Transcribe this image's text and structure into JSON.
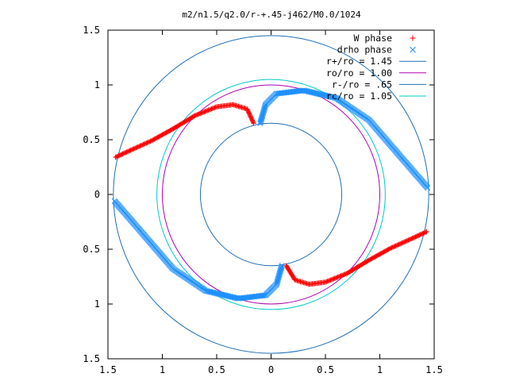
{
  "chart_data": {
    "type": "scatter",
    "title": "m2/n1.5/q2.0/r-+.45-j462/M0.0/1024",
    "xlim": [
      -1.5,
      1.5
    ],
    "ylim": [
      -1.5,
      1.5
    ],
    "x_tick_labels": [
      "1.5",
      "1",
      "0.5",
      "0",
      "0.5",
      "1",
      "1.5"
    ],
    "x_tick_values": [
      -1.5,
      -1,
      -0.5,
      0,
      0.5,
      1,
      1.5
    ],
    "y_tick_labels": [
      "1.5",
      "1",
      "0.5",
      "0",
      "0.5",
      "1",
      "1.5"
    ],
    "y_tick_values": [
      1.5,
      1,
      0.5,
      0,
      -0.5,
      -1,
      -1.5
    ],
    "grid": false,
    "legend_position": "top-right",
    "series": [
      {
        "name": "W phase",
        "marker": "plus",
        "color": "#ff0000",
        "segments": [
          [
            [
              -1.43,
              0.34
            ],
            [
              -1.3,
              0.4
            ],
            [
              -1.1,
              0.49
            ],
            [
              -0.9,
              0.6
            ],
            [
              -0.7,
              0.72
            ],
            [
              -0.5,
              0.8
            ],
            [
              -0.35,
              0.82
            ],
            [
              -0.22,
              0.78
            ],
            [
              -0.16,
              0.65
            ]
          ],
          [
            [
              0.14,
              -0.65
            ],
            [
              0.22,
              -0.78
            ],
            [
              0.35,
              -0.82
            ],
            [
              0.5,
              -0.8
            ],
            [
              0.7,
              -0.72
            ],
            [
              0.9,
              -0.6
            ],
            [
              1.1,
              -0.49
            ],
            [
              1.3,
              -0.4
            ],
            [
              1.43,
              -0.34
            ]
          ]
        ]
      },
      {
        "name": "drho phase",
        "marker": "cross",
        "color": "#1e90ff",
        "segments": [
          [
            [
              -0.1,
              0.65
            ],
            [
              -0.05,
              0.82
            ],
            [
              0.05,
              0.92
            ],
            [
              0.3,
              0.95
            ],
            [
              0.6,
              0.88
            ],
            [
              0.9,
              0.68
            ],
            [
              1.1,
              0.45
            ],
            [
              1.3,
              0.22
            ],
            [
              1.44,
              0.06
            ]
          ],
          [
            [
              0.1,
              -0.65
            ],
            [
              0.05,
              -0.82
            ],
            [
              -0.05,
              -0.92
            ],
            [
              -0.3,
              -0.95
            ],
            [
              -0.6,
              -0.88
            ],
            [
              -0.9,
              -0.68
            ],
            [
              -1.1,
              -0.45
            ],
            [
              -1.3,
              -0.22
            ],
            [
              -1.44,
              -0.06
            ]
          ]
        ]
      },
      {
        "name": "r+/ro = 1.45",
        "type": "circle",
        "radius": 1.45,
        "color": "#1f6fb5"
      },
      {
        "name": "ro/ro = 1.00",
        "type": "circle",
        "radius": 1.0,
        "color": "#b000b0"
      },
      {
        "name": "r-/ro = .65",
        "type": "circle",
        "radius": 0.65,
        "color": "#1f6fb5"
      },
      {
        "name": "rc/ro = 1.05",
        "type": "circle",
        "radius": 1.05,
        "color": "#00c8c8"
      }
    ]
  }
}
